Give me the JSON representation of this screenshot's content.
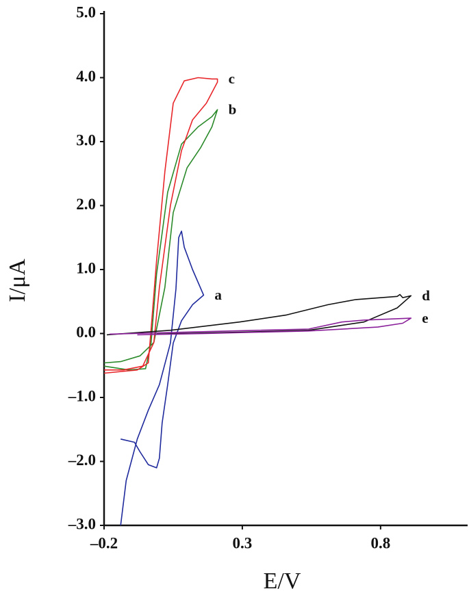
{
  "chart_data": {
    "type": "line",
    "xlabel": "E/V",
    "ylabel": "I/μA",
    "xlim": [
      -0.2,
      1.1
    ],
    "ylim": [
      -3.0,
      5.0
    ],
    "xticks": [
      {
        "value": -0.2,
        "label": "–0.2"
      },
      0.3,
      0.8
    ],
    "yticks": [
      {
        "value": 5.0,
        "label": "5.0"
      },
      {
        "value": 4.0,
        "label": "4.0"
      },
      {
        "value": 3.0,
        "label": "3.0"
      },
      {
        "value": 2.0,
        "label": "2.0"
      },
      {
        "value": 1.0,
        "label": "1.0"
      },
      {
        "value": 0.0,
        "label": "0.0"
      },
      {
        "value": -1.0,
        "label": "–1.0"
      },
      {
        "value": -2.0,
        "label": "–2.0"
      },
      {
        "value": -3.0,
        "label": "–3.0"
      }
    ],
    "grid": false,
    "series": [
      {
        "name": "a",
        "color": "#1f2a9c",
        "x": [
          -0.14,
          -0.12,
          -0.08,
          -0.04,
          0.0,
          0.04,
          0.06,
          0.07,
          0.08,
          0.09,
          0.12,
          0.16,
          0.12,
          0.08,
          0.05,
          0.03,
          0.01,
          0.0,
          -0.01,
          -0.04,
          -0.07,
          -0.09,
          -0.14
        ],
        "values": [
          -3.0,
          -2.3,
          -1.65,
          -1.2,
          -0.8,
          -0.15,
          0.7,
          1.5,
          1.6,
          1.35,
          1.0,
          0.6,
          0.45,
          0.2,
          -0.15,
          -0.8,
          -1.4,
          -1.95,
          -2.1,
          -2.05,
          -1.85,
          -1.7,
          -1.65
        ]
      },
      {
        "name": "b",
        "color": "#2a8a2a",
        "x": [
          -0.2,
          -0.11,
          -0.05,
          -0.03,
          -0.01,
          0.03,
          0.08,
          0.14,
          0.19,
          0.21,
          0.19,
          0.15,
          0.1,
          0.05,
          0.02,
          -0.02,
          -0.07,
          -0.14,
          -0.2
        ],
        "values": [
          -0.51,
          -0.57,
          -0.55,
          -0.14,
          0.93,
          2.21,
          2.96,
          3.23,
          3.39,
          3.5,
          3.23,
          2.91,
          2.59,
          1.89,
          0.72,
          -0.14,
          -0.35,
          -0.44,
          -0.46
        ]
      },
      {
        "name": "c",
        "color": "#e8262a",
        "x": [
          -0.2,
          -0.08,
          -0.04,
          -0.03,
          -0.01,
          0.02,
          0.05,
          0.09,
          0.14,
          0.19,
          0.21,
          0.21,
          0.17,
          0.12,
          0.08,
          0.04,
          0.0,
          -0.02,
          -0.06,
          -0.13,
          -0.2
        ],
        "values": [
          -0.62,
          -0.57,
          -0.46,
          0.07,
          1.14,
          2.53,
          3.6,
          3.95,
          4.0,
          3.98,
          3.98,
          3.93,
          3.6,
          3.34,
          2.86,
          2.0,
          0.72,
          -0.14,
          -0.51,
          -0.57,
          -0.57
        ]
      },
      {
        "name": "d",
        "color": "#111111",
        "x": [
          -0.19,
          0.04,
          0.29,
          0.46,
          0.61,
          0.71,
          0.86,
          0.87,
          0.88,
          0.91,
          0.86,
          0.74,
          0.54,
          0.29,
          0.07,
          -0.01
        ],
        "values": [
          -0.02,
          0.05,
          0.18,
          0.29,
          0.45,
          0.53,
          0.58,
          0.61,
          0.56,
          0.59,
          0.4,
          0.18,
          0.05,
          0.02,
          0.0,
          -0.01
        ]
      },
      {
        "name": "e",
        "color": "#8a1f9a",
        "x": [
          -0.18,
          0.17,
          0.54,
          0.66,
          0.74,
          0.91,
          0.88,
          0.79,
          0.54,
          0.17,
          -0.08
        ],
        "values": [
          -0.01,
          0.03,
          0.07,
          0.18,
          0.21,
          0.24,
          0.16,
          0.1,
          0.04,
          0.0,
          -0.02
        ]
      }
    ]
  }
}
